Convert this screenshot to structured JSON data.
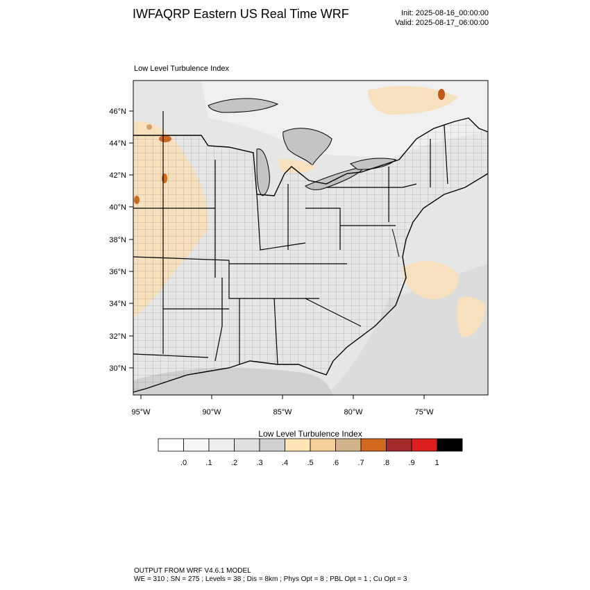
{
  "header": {
    "title": "IWFAQRP Eastern US Real Time WRF",
    "init": "Init: 2025-08-16_00:00:00",
    "valid": "Valid: 2025-08-17_06:00:00"
  },
  "map": {
    "panel_label": "Low Level Turbulence Index",
    "lat_labels": [
      "46°N",
      "44°N",
      "42°N",
      "40°N",
      "38°N",
      "36°N",
      "34°N",
      "32°N",
      "30°N"
    ],
    "lon_labels": [
      "95°W",
      "90°W",
      "85°W",
      "80°W",
      "75°W"
    ],
    "colors": {
      "land": "#e8e8e8",
      "water": "#c8c8c8",
      "border": "#000000",
      "county": "#555555"
    }
  },
  "colorbar": {
    "title": "Low Level Turbulence Index",
    "colors": [
      "#ffffff",
      "#f7f7f7",
      "#eeeeee",
      "#e0e0e0",
      "#d0d0d0",
      "#ffe4b5",
      "#f5d09a",
      "#d2b48c",
      "#d2691e",
      "#a52a2a",
      "#dc2020",
      "#000000"
    ],
    "tick_labels": [
      ".0",
      ".1",
      ".2",
      ".3",
      ".4",
      ".5",
      ".6",
      ".7",
      ".8",
      ".9",
      "1"
    ]
  },
  "footer": {
    "line1": "OUTPUT FROM WRF V4.6.1 MODEL",
    "line2": "WE = 310 ; SN = 275 ; Levels = 38 ; Dis = 8km ; Phys Opt = 8 ; PBL Opt = 1 ; Cu Opt = 3"
  }
}
